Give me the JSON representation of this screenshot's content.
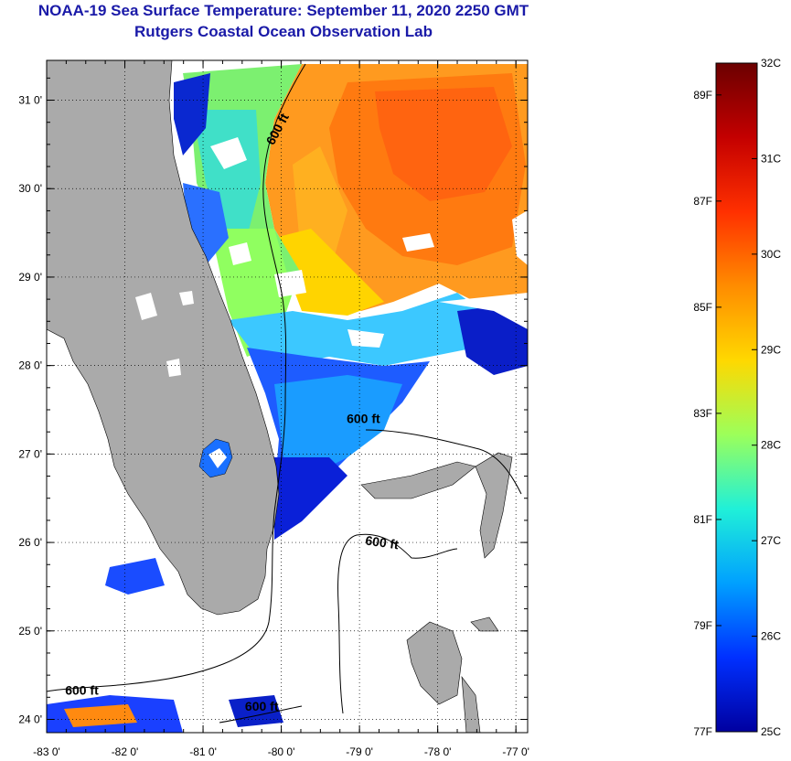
{
  "header": {
    "title": "NOAA-19 Sea Surface Temperature:  September 11, 2020 2250 GMT",
    "subtitle": "Rutgers Coastal Ocean Observation Lab"
  },
  "map": {
    "lon_ticks": [
      -83,
      -82,
      -81,
      -80,
      -79,
      -78,
      -77
    ],
    "lon_labels": [
      "-83 0'",
      "-82 0'",
      "-81 0'",
      "-80 0'",
      "-79 0'",
      "-78 0'",
      "-77 0'"
    ],
    "lat_ticks": [
      24,
      25,
      26,
      27,
      28,
      29,
      30,
      31
    ],
    "lat_labels": [
      "24 0'",
      "25 0'",
      "26 0'",
      "27 0'",
      "28 0'",
      "29 0'",
      "30 0'",
      "31 0'"
    ],
    "contour_labels": [
      {
        "text": "600 ft",
        "lon": -80.0,
        "lat": 30.65
      },
      {
        "text": "600 ft",
        "lon": -78.95,
        "lat": 27.35
      },
      {
        "text": "600 ft",
        "lon": -78.72,
        "lat": 25.95
      },
      {
        "text": "600 ft",
        "lon": -82.55,
        "lat": 24.28
      },
      {
        "text": "600 ft",
        "lon": -80.25,
        "lat": 24.1
      }
    ]
  },
  "colorbar": {
    "celsius": [
      "32C",
      "31C",
      "30C",
      "29C",
      "28C",
      "27C",
      "26C",
      "25C"
    ],
    "fahrenheit": [
      "89F",
      "87F",
      "85F",
      "83F",
      "81F",
      "79F",
      "77F"
    ],
    "colors": [
      "#6b0000",
      "#c40000",
      "#ff3000",
      "#ff8c00",
      "#ffd800",
      "#9cff5a",
      "#20f0d8",
      "#00a0ff",
      "#0030ff",
      "#0000a0"
    ]
  }
}
